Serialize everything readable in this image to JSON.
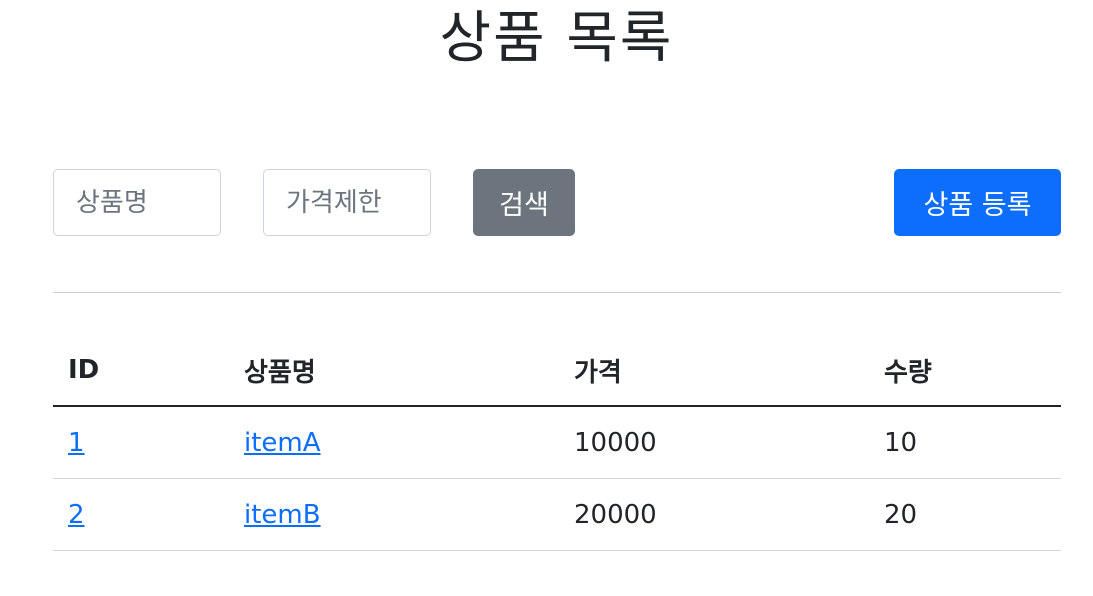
{
  "page": {
    "title": "상품 목록"
  },
  "search": {
    "name_placeholder": "상품명",
    "price_placeholder": "가격제한",
    "search_label": "검색",
    "add_label": "상품 등록"
  },
  "table": {
    "headers": [
      "ID",
      "상품명",
      "가격",
      "수량"
    ],
    "rows": [
      {
        "id": "1",
        "name": "itemA",
        "price": "10000",
        "quantity": "10"
      },
      {
        "id": "2",
        "name": "itemB",
        "price": "20000",
        "quantity": "20"
      }
    ]
  },
  "colors": {
    "search_button": "#6c757d",
    "add_button": "#0d6efd",
    "link": "#0d6efd"
  }
}
